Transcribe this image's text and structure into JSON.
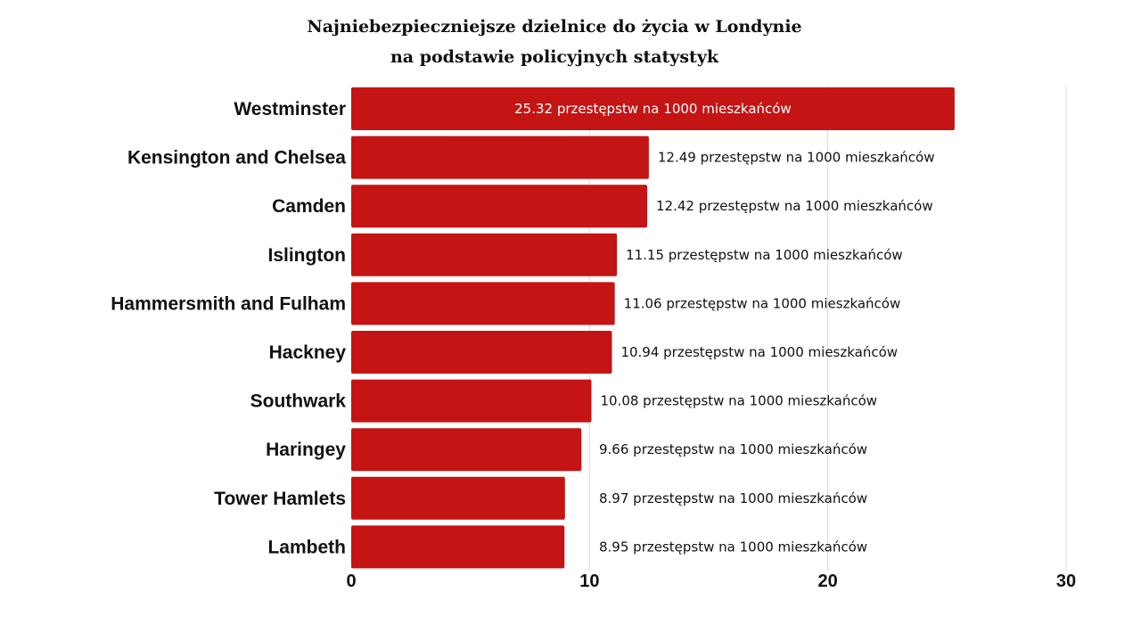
{
  "chart_data": {
    "type": "bar",
    "orientation": "horizontal",
    "title": "Najniebezpieczniejsze dzielnice do życia w Londynie",
    "subtitle": "na podstawie policyjnych statystyk",
    "categories": [
      "Westminster",
      "Kensington and Chelsea",
      "Camden",
      "Islington",
      "Hammersmith and Fulham",
      "Hackney",
      "Southwark",
      "Haringey",
      "Tower Hamlets",
      "Lambeth"
    ],
    "values": [
      25.32,
      12.49,
      12.42,
      11.15,
      11.06,
      10.94,
      10.08,
      9.66,
      8.97,
      8.95
    ],
    "data_labels": [
      "25.32 przestępstw na 1000 mieszkańców",
      "12.49 przestępstw na 1000 mieszkańców",
      "12.42 przestępstw na 1000 mieszkańców",
      "11.15 przestępstw na 1000 mieszkańców",
      "11.06 przestępstw na 1000 mieszkańców",
      "10.94 przestępstw na 1000 mieszkańców",
      "10.08 przestępstw na 1000 mieszkańców",
      "9.66 przestępstw na 1000 mieszkańców",
      "8.97 przestępstw na 1000 mieszkańców",
      "8.95 przestępstw na 1000 mieszkańców"
    ],
    "x_ticks": [
      "0",
      "10",
      "20",
      "30"
    ],
    "xlim": [
      0,
      30
    ],
    "xlabel": "",
    "ylabel": "",
    "grid": "vertical",
    "legend": "none",
    "bar_color": "#c41414",
    "label_color_inside": "#ffffff",
    "label_color_outside": "#111111"
  }
}
